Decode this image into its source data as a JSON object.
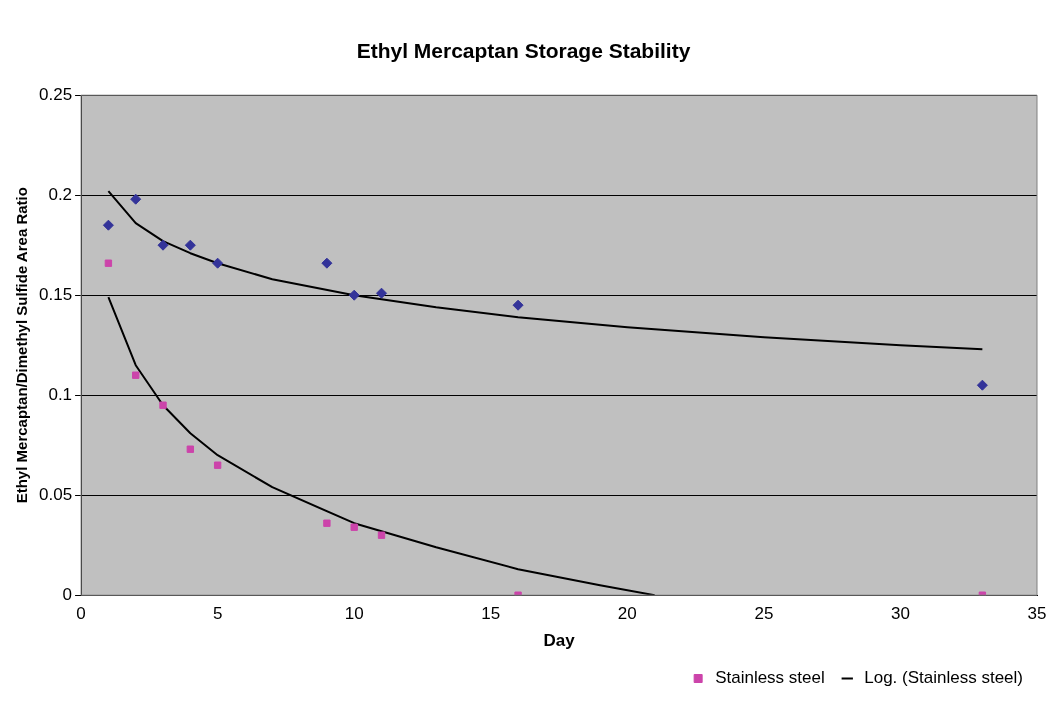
{
  "chart_data": {
    "type": "scatter",
    "title": "Ethyl Mercaptan Storage Stability",
    "xlabel": "Day",
    "ylabel": "Ethyl Mercaptan/Dimethyl Sulfide Area Ratio",
    "xlim": [
      0,
      35
    ],
    "xticks": [
      0,
      5,
      10,
      15,
      20,
      25,
      30,
      35
    ],
    "ylim": [
      0,
      0.25
    ],
    "yticks": [
      0,
      0.05,
      0.1,
      0.15,
      0.2,
      0.25
    ],
    "grid": "y",
    "legend": "bottom",
    "series": [
      {
        "name": "Stainless steel",
        "type": "scatter",
        "marker": "square",
        "color": "#cc44aa",
        "x": [
          1,
          2,
          3,
          4,
          5,
          9,
          10,
          11,
          16,
          33
        ],
        "values": [
          0.166,
          0.11,
          0.095,
          0.073,
          0.065,
          0.036,
          0.034,
          0.03,
          0,
          0
        ]
      },
      {
        "type": "scatter",
        "marker": "diamond",
        "color": "#333399",
        "x": [
          1,
          2,
          3,
          4,
          5,
          9,
          10,
          11,
          16,
          33
        ],
        "values": [
          0.185,
          0.198,
          0.175,
          0.175,
          0.166,
          0.166,
          0.15,
          0.151,
          0.145,
          0.105
        ]
      },
      {
        "name": "Log. (Stainless steel)",
        "type": "line",
        "marker": "none",
        "line_style": "solid",
        "color": "#000000",
        "x": [
          1,
          2,
          3,
          4,
          5,
          7,
          10,
          13,
          16,
          19,
          21
        ],
        "values": [
          0.149,
          0.115,
          0.095,
          0.081,
          0.07,
          0.054,
          0.036,
          0.024,
          0.013,
          0.005,
          0
        ]
      },
      {
        "type": "line",
        "marker": "none",
        "line_style": "solid",
        "color": "#000000",
        "x": [
          1,
          2,
          3,
          4,
          5,
          7,
          10,
          13,
          16,
          20,
          25,
          30,
          33
        ],
        "values": [
          0.202,
          0.186,
          0.177,
          0.171,
          0.166,
          0.158,
          0.15,
          0.144,
          0.139,
          0.134,
          0.129,
          0.125,
          0.123
        ]
      }
    ]
  }
}
